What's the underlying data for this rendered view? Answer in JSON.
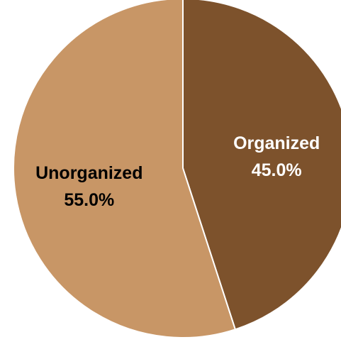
{
  "chart_data": {
    "type": "pie",
    "slices": [
      {
        "label": "Organized",
        "value": 45.0,
        "value_label": "45.0%",
        "color": "#7D522C",
        "text_color": "#FFFFFF"
      },
      {
        "label": "Unorganized",
        "value": 55.0,
        "value_label": "55.0%",
        "color": "#C89666",
        "text_color": "#000000"
      }
    ],
    "start_angle_deg": 0,
    "direction": "clockwise",
    "legend": "none"
  }
}
